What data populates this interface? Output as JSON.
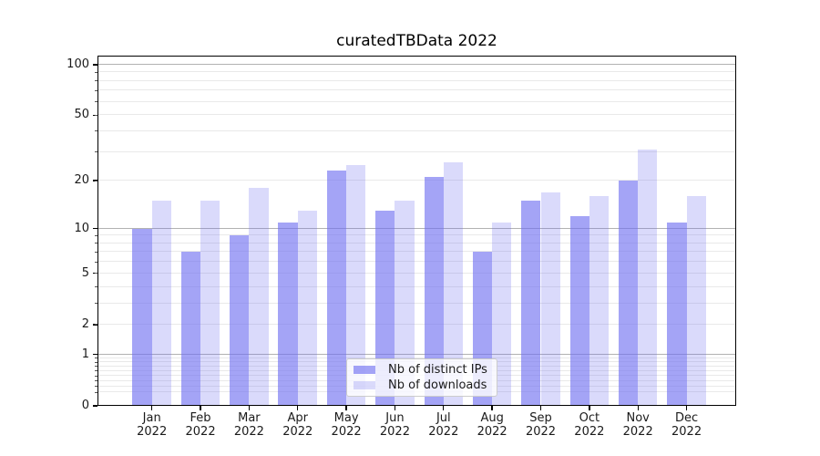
{
  "title": "curatedTBData 2022",
  "chart_data": {
    "type": "bar",
    "title": "curatedTBData 2022",
    "categories": [
      "Jan",
      "Feb",
      "Mar",
      "Apr",
      "May",
      "Jun",
      "Jul",
      "Aug",
      "Sep",
      "Oct",
      "Nov",
      "Dec"
    ],
    "year": "2022",
    "series": [
      {
        "name": "Nb of distinct IPs",
        "color": "rgba(108,108,240,0.62)",
        "values": [
          10,
          7,
          9,
          11,
          23,
          13,
          21,
          7,
          15,
          12,
          20,
          11
        ]
      },
      {
        "name": "Nb of downloads",
        "color": "rgba(108,108,240,0.25)",
        "values": [
          15,
          15,
          18,
          13,
          25,
          15,
          26,
          11,
          17,
          16,
          31,
          16
        ]
      }
    ],
    "yscale": "log1p",
    "ylim": [
      0,
      113
    ],
    "yticks": [
      100,
      50,
      20,
      10,
      5,
      2,
      1,
      0
    ],
    "ytick_labels": [
      "100",
      "50",
      "20",
      "10",
      "5",
      "2",
      "1",
      "0"
    ],
    "major_gridlines": [
      1,
      10,
      100
    ],
    "minor_gridlines": [
      0.2,
      0.3,
      0.4,
      0.5,
      0.6,
      0.7,
      0.8,
      0.9,
      2,
      3,
      4,
      5,
      6,
      7,
      8,
      9,
      20,
      30,
      40,
      50,
      60,
      70,
      80,
      90
    ],
    "grid": true,
    "legend_position": "lower center",
    "xlabel": "",
    "ylabel": ""
  },
  "colors": {
    "background": "#ffffff",
    "spine": "#000000",
    "grid_major": "#b2b2b2",
    "grid_minor": "#e9e9e9",
    "text": "#1a1a1a",
    "bar_dark": "rgba(108,108,240,0.62)",
    "bar_light": "rgba(108,108,240,0.25)"
  },
  "legend": {
    "items": [
      {
        "label": "Nb of distinct IPs"
      },
      {
        "label": "Nb of downloads"
      }
    ]
  }
}
